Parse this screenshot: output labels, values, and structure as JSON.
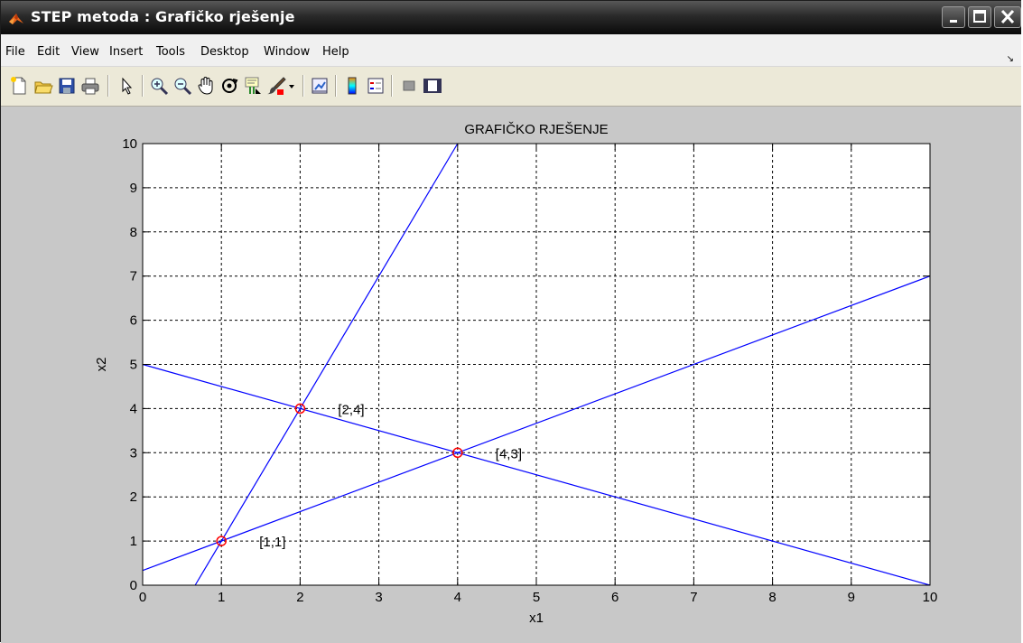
{
  "window": {
    "title": "STEP metoda : Grafičko rješenje"
  },
  "menu": [
    "File",
    "Edit",
    "View",
    "Insert",
    "Tools",
    "Desktop",
    "Window",
    "Help"
  ],
  "toolbar": {
    "icons": [
      "new-figure-icon",
      "open-file-icon",
      "save-icon",
      "print-icon",
      "edit-plot-arrow-icon",
      "zoom-in-icon",
      "zoom-out-icon",
      "pan-hand-icon",
      "rotate-3d-icon",
      "data-cursor-icon",
      "brush-icon",
      "brush-dropdown-icon",
      "link-plot-icon",
      "colorbar-icon",
      "legend-icon",
      "hide-plot-tools-icon",
      "show-plot-tools-icon"
    ]
  },
  "colors": {
    "line": "#0000ff",
    "marker": "#ff0000",
    "figure_bg": "#c8c8c8",
    "axes_bg": "#ffffff"
  },
  "chart_data": {
    "type": "line",
    "title": "GRAFIČKO RJEŠENJE",
    "xlabel": "x1",
    "ylabel": "x2",
    "xlim": [
      0,
      10
    ],
    "ylim": [
      0,
      10
    ],
    "grid": true,
    "xticks": [
      "0",
      "1",
      "2",
      "3",
      "4",
      "5",
      "6",
      "7",
      "8",
      "9",
      "10"
    ],
    "yticks": [
      "0",
      "1",
      "2",
      "3",
      "4",
      "5",
      "6",
      "7",
      "8",
      "9",
      "10"
    ],
    "series": [
      {
        "points": [
          [
            0.667,
            0
          ],
          [
            4,
            10
          ]
        ]
      },
      {
        "points": [
          [
            0,
            5
          ],
          [
            10,
            0
          ]
        ]
      },
      {
        "points": [
          [
            0,
            0.333
          ],
          [
            10,
            7
          ]
        ]
      }
    ],
    "markers": [
      [
        1,
        1
      ],
      [
        2,
        4
      ],
      [
        4,
        3
      ]
    ],
    "annotations": [
      {
        "x": 1,
        "y": 1,
        "text": "[1,1]"
      },
      {
        "x": 2,
        "y": 4,
        "text": "[2,4]"
      },
      {
        "x": 4,
        "y": 3,
        "text": "[4,3]"
      }
    ]
  }
}
